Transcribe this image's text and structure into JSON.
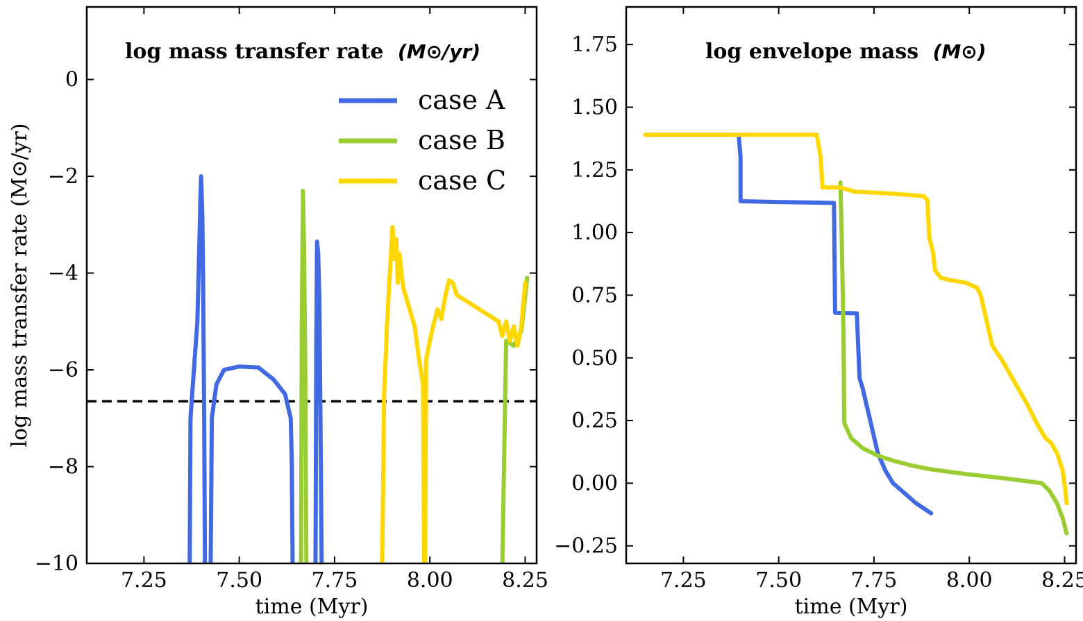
{
  "colors": {
    "case_A": "#4169e1",
    "case_B": "#9acd32",
    "case_C": "#ffd700"
  },
  "chart_data": [
    {
      "type": "line",
      "title_bold": "log mass transfer rate",
      "title_unit": "(M⊙/yr)",
      "xlabel": "time (Myr)",
      "ylabel": "log mass transfer rate (M⊙/yr)",
      "xlim": [
        7.1,
        8.28
      ],
      "ylim": [
        -10,
        1.5
      ],
      "xticks": [
        7.25,
        7.5,
        7.75,
        8.0,
        8.25
      ],
      "xtick_labels": [
        "7.25",
        "7.50",
        "7.75",
        "8.00",
        "8.25"
      ],
      "yticks": [
        0,
        -2,
        -4,
        -6,
        -8,
        -10
      ],
      "ytick_labels": [
        "0",
        "−2",
        "−4",
        "−6",
        "−8",
        "−10"
      ],
      "hline": -6.65,
      "legend": [
        "case A",
        "case B",
        "case C"
      ],
      "legend_position": "top-right",
      "series": [
        {
          "name": "case A",
          "segments": [
            [
              [
                7.37,
                -10
              ],
              [
                7.372,
                -7.0
              ],
              [
                7.38,
                -6.1
              ],
              [
                7.39,
                -5.0
              ],
              [
                7.395,
                -3.5
              ],
              [
                7.398,
                -2.5
              ],
              [
                7.4,
                -2.0
              ],
              [
                7.403,
                -2.8
              ],
              [
                7.405,
                -4.0
              ],
              [
                7.408,
                -7.0
              ],
              [
                7.41,
                -10
              ]
            ],
            [
              [
                7.425,
                -10
              ],
              [
                7.428,
                -7.0
              ],
              [
                7.44,
                -6.3
              ],
              [
                7.46,
                -6.0
              ],
              [
                7.5,
                -5.93
              ],
              [
                7.55,
                -5.95
              ],
              [
                7.59,
                -6.2
              ],
              [
                7.62,
                -6.5
              ],
              [
                7.635,
                -7.0
              ],
              [
                7.638,
                -8.0
              ],
              [
                7.64,
                -10
              ]
            ],
            [
              [
                7.7,
                -10
              ],
              [
                7.702,
                -5.5
              ],
              [
                7.704,
                -3.35
              ],
              [
                7.707,
                -3.6
              ],
              [
                7.71,
                -4.5
              ],
              [
                7.713,
                -7.0
              ],
              [
                7.716,
                -10
              ]
            ]
          ]
        },
        {
          "name": "case B",
          "segments": [
            [
              [
                7.662,
                -10
              ],
              [
                7.664,
                -5.0
              ],
              [
                7.667,
                -2.3
              ],
              [
                7.67,
                -3.5
              ],
              [
                7.673,
                -6.0
              ],
              [
                7.676,
                -10
              ]
            ],
            [
              [
                8.19,
                -10
              ],
              [
                8.2,
                -5.4
              ],
              [
                8.22,
                -5.5
              ],
              [
                8.24,
                -5.2
              ],
              [
                8.255,
                -4.1
              ]
            ]
          ]
        },
        {
          "name": "case C",
          "segments": [
            [
              [
                7.875,
                -10
              ],
              [
                7.88,
                -6.5
              ],
              [
                7.888,
                -5.0
              ],
              [
                7.895,
                -4.0
              ],
              [
                7.902,
                -3.05
              ],
              [
                7.907,
                -3.7
              ],
              [
                7.912,
                -3.3
              ],
              [
                7.916,
                -4.2
              ],
              [
                7.92,
                -3.6
              ],
              [
                7.93,
                -4.3
              ],
              [
                7.945,
                -4.7
              ],
              [
                7.96,
                -5.1
              ],
              [
                7.97,
                -5.7
              ],
              [
                7.978,
                -6.1
              ],
              [
                7.982,
                -6.3
              ],
              [
                7.985,
                -10
              ]
            ],
            [
              [
                7.988,
                -10
              ],
              [
                7.99,
                -5.8
              ],
              [
                8.0,
                -5.4
              ],
              [
                8.01,
                -5.05
              ],
              [
                8.02,
                -4.75
              ],
              [
                8.03,
                -4.95
              ],
              [
                8.04,
                -4.5
              ],
              [
                8.05,
                -4.15
              ],
              [
                8.06,
                -4.2
              ],
              [
                8.07,
                -4.45
              ],
              [
                8.08,
                -4.5
              ],
              [
                8.09,
                -4.55
              ],
              [
                8.1,
                -4.6
              ],
              [
                8.12,
                -4.7
              ],
              [
                8.14,
                -4.8
              ],
              [
                8.16,
                -4.9
              ],
              [
                8.18,
                -5.0
              ],
              [
                8.19,
                -5.3
              ],
              [
                8.2,
                -5.0
              ],
              [
                8.21,
                -5.4
              ],
              [
                8.22,
                -5.1
              ],
              [
                8.23,
                -5.5
              ],
              [
                8.24,
                -5.1
              ],
              [
                8.25,
                -4.2
              ]
            ]
          ]
        }
      ]
    },
    {
      "type": "line",
      "title_bold": "log envelope mass",
      "title_unit": "(M⊙)",
      "xlabel": "time (Myr)",
      "xlim": [
        7.1,
        8.28
      ],
      "ylim": [
        -0.32,
        1.9
      ],
      "xticks": [
        7.25,
        7.5,
        7.75,
        8.0,
        8.25
      ],
      "xtick_labels": [
        "7.25",
        "7.50",
        "7.75",
        "8.00",
        "8.25"
      ],
      "yticks": [
        1.75,
        1.5,
        1.25,
        1.0,
        0.75,
        0.5,
        0.25,
        0.0,
        -0.25
      ],
      "ytick_labels": [
        "1.75",
        "1.50",
        "1.25",
        "1.00",
        "0.75",
        "0.50",
        "0.25",
        "0.00",
        "−0.25"
      ],
      "series": [
        {
          "name": "case A",
          "points": [
            [
              7.15,
              1.39
            ],
            [
              7.395,
              1.39
            ],
            [
              7.4,
              1.3
            ],
            [
              7.4,
              1.125
            ],
            [
              7.5,
              1.122
            ],
            [
              7.645,
              1.118
            ],
            [
              7.648,
              0.68
            ],
            [
              7.705,
              0.678
            ],
            [
              7.712,
              0.42
            ],
            [
              7.72,
              0.38
            ],
            [
              7.74,
              0.25
            ],
            [
              7.76,
              0.12
            ],
            [
              7.78,
              0.05
            ],
            [
              7.8,
              0.0
            ],
            [
              7.83,
              -0.04
            ],
            [
              7.86,
              -0.08
            ],
            [
              7.9,
              -0.12
            ]
          ]
        },
        {
          "name": "case B",
          "points": [
            [
              7.662,
              1.2
            ],
            [
              7.665,
              1.0
            ],
            [
              7.67,
              0.6
            ],
            [
              7.672,
              0.24
            ],
            [
              7.69,
              0.18
            ],
            [
              7.72,
              0.14
            ],
            [
              7.76,
              0.11
            ],
            [
              7.8,
              0.09
            ],
            [
              7.85,
              0.07
            ],
            [
              7.9,
              0.055
            ],
            [
              8.0,
              0.035
            ],
            [
              8.1,
              0.018
            ],
            [
              8.19,
              0.0
            ],
            [
              8.21,
              -0.03
            ],
            [
              8.23,
              -0.08
            ],
            [
              8.245,
              -0.14
            ],
            [
              8.255,
              -0.2
            ]
          ]
        },
        {
          "name": "case C",
          "points": [
            [
              7.15,
              1.39
            ],
            [
              7.6,
              1.39
            ],
            [
              7.61,
              1.3
            ],
            [
              7.615,
              1.18
            ],
            [
              7.66,
              1.18
            ],
            [
              7.7,
              1.163
            ],
            [
              7.8,
              1.155
            ],
            [
              7.88,
              1.145
            ],
            [
              7.89,
              1.13
            ],
            [
              7.895,
              0.98
            ],
            [
              7.905,
              0.92
            ],
            [
              7.91,
              0.85
            ],
            [
              7.925,
              0.82
            ],
            [
              7.95,
              0.81
            ],
            [
              7.99,
              0.8
            ],
            [
              8.02,
              0.78
            ],
            [
              8.03,
              0.75
            ],
            [
              8.06,
              0.55
            ],
            [
              8.09,
              0.48
            ],
            [
              8.12,
              0.4
            ],
            [
              8.15,
              0.32
            ],
            [
              8.18,
              0.23
            ],
            [
              8.2,
              0.18
            ],
            [
              8.215,
              0.16
            ],
            [
              8.23,
              0.12
            ],
            [
              8.245,
              0.05
            ],
            [
              8.252,
              -0.03
            ],
            [
              8.255,
              -0.08
            ]
          ]
        }
      ]
    }
  ]
}
